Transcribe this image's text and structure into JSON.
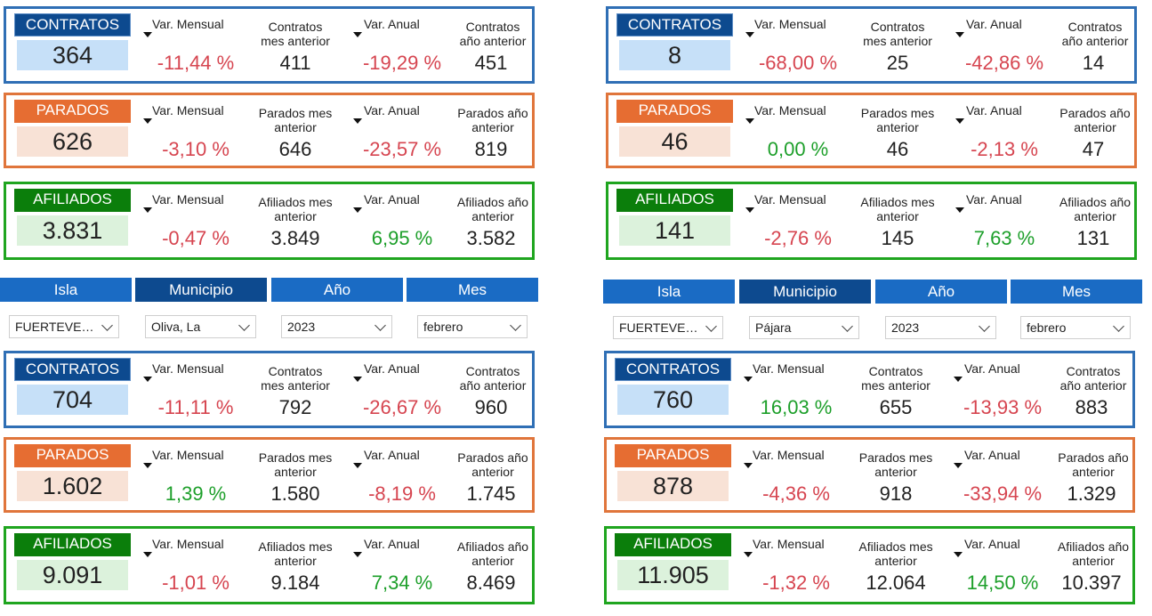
{
  "filters": {
    "tabs": [
      "Isla",
      "Municipio",
      "Año",
      "Mes"
    ],
    "left": {
      "isla": "FUERTEVENTURA",
      "municipio": "Oliva, La",
      "anio": "2023",
      "mes": "febrero"
    },
    "right": {
      "isla": "FUERTEVENTURA",
      "municipio": "Pájara",
      "anio": "2023",
      "mes": "febrero"
    }
  },
  "labels": {
    "var_mensual": "Var. Mensual",
    "var_anual": "Var. Anual",
    "contratos_mes": [
      "Contratos",
      "mes anterior"
    ],
    "contratos_anio": [
      "Contratos",
      "año anterior"
    ],
    "parados_mes": [
      "Parados mes",
      "anterior"
    ],
    "parados_anio": [
      "Parados año",
      "anterior"
    ],
    "afiliados_mes": [
      "Afiliados mes",
      "anterior"
    ],
    "afiliados_anio": [
      "Afiliados año",
      "anterior"
    ]
  },
  "panels": [
    {
      "contratos": {
        "title": "CONTRATOS",
        "value": "364",
        "var_mensual": "-11,44 %",
        "mes_anterior": "411",
        "var_anual": "-19,29 %",
        "anio_anterior": "451"
      },
      "parados": {
        "title": "PARADOS",
        "value": "626",
        "var_mensual": "-3,10 %",
        "mes_anterior": "646",
        "var_anual": "-23,57 %",
        "anio_anterior": "819"
      },
      "afiliados": {
        "title": "AFILIADOS",
        "value": "3.831",
        "var_mensual": "-0,47 %",
        "mes_anterior": "3.849",
        "var_anual": "6,95 %",
        "anio_anterior": "3.582"
      }
    },
    {
      "contratos": {
        "title": "CONTRATOS",
        "value": "8",
        "var_mensual": "-68,00 %",
        "mes_anterior": "25",
        "var_anual": "-42,86 %",
        "anio_anterior": "14"
      },
      "parados": {
        "title": "PARADOS",
        "value": "46",
        "var_mensual": "0,00 %",
        "mes_anterior": "46",
        "var_anual": "-2,13 %",
        "anio_anterior": "47"
      },
      "afiliados": {
        "title": "AFILIADOS",
        "value": "141",
        "var_mensual": "-2,76 %",
        "mes_anterior": "145",
        "var_anual": "7,63 %",
        "anio_anterior": "131"
      }
    },
    {
      "contratos": {
        "title": "CONTRATOS",
        "value": "704",
        "var_mensual": "-11,11 %",
        "mes_anterior": "792",
        "var_anual": "-26,67 %",
        "anio_anterior": "960"
      },
      "parados": {
        "title": "PARADOS",
        "value": "1.602",
        "var_mensual": "1,39 %",
        "mes_anterior": "1.580",
        "var_anual": "-8,19 %",
        "anio_anterior": "1.745"
      },
      "afiliados": {
        "title": "AFILIADOS",
        "value": "9.091",
        "var_mensual": "-1,01 %",
        "mes_anterior": "9.184",
        "var_anual": "7,34 %",
        "anio_anterior": "8.469"
      }
    },
    {
      "contratos": {
        "title": "CONTRATOS",
        "value": "760",
        "var_mensual": "16,03 %",
        "mes_anterior": "655",
        "var_anual": "-13,93 %",
        "anio_anterior": "883"
      },
      "parados": {
        "title": "PARADOS",
        "value": "878",
        "var_mensual": "-4,36 %",
        "mes_anterior": "918",
        "var_anual": "-33,94 %",
        "anio_anterior": "1.329"
      },
      "afiliados": {
        "title": "AFILIADOS",
        "value": "11.905",
        "var_mensual": "-1,32 %",
        "mes_anterior": "12.064",
        "var_anual": "14,50 %",
        "anio_anterior": "10.397"
      }
    }
  ],
  "colors": {
    "contratos_border": "#2f6fb5",
    "parados_border": "#e0753b",
    "afiliados_border": "#1fa51f",
    "negative": "#d64550",
    "positive": "#1d9f2a",
    "tab": "#1a6bc4",
    "tab_active": "#0d4a8f"
  },
  "icons": [
    "sort-down-icon",
    "chevron-down-icon"
  ]
}
